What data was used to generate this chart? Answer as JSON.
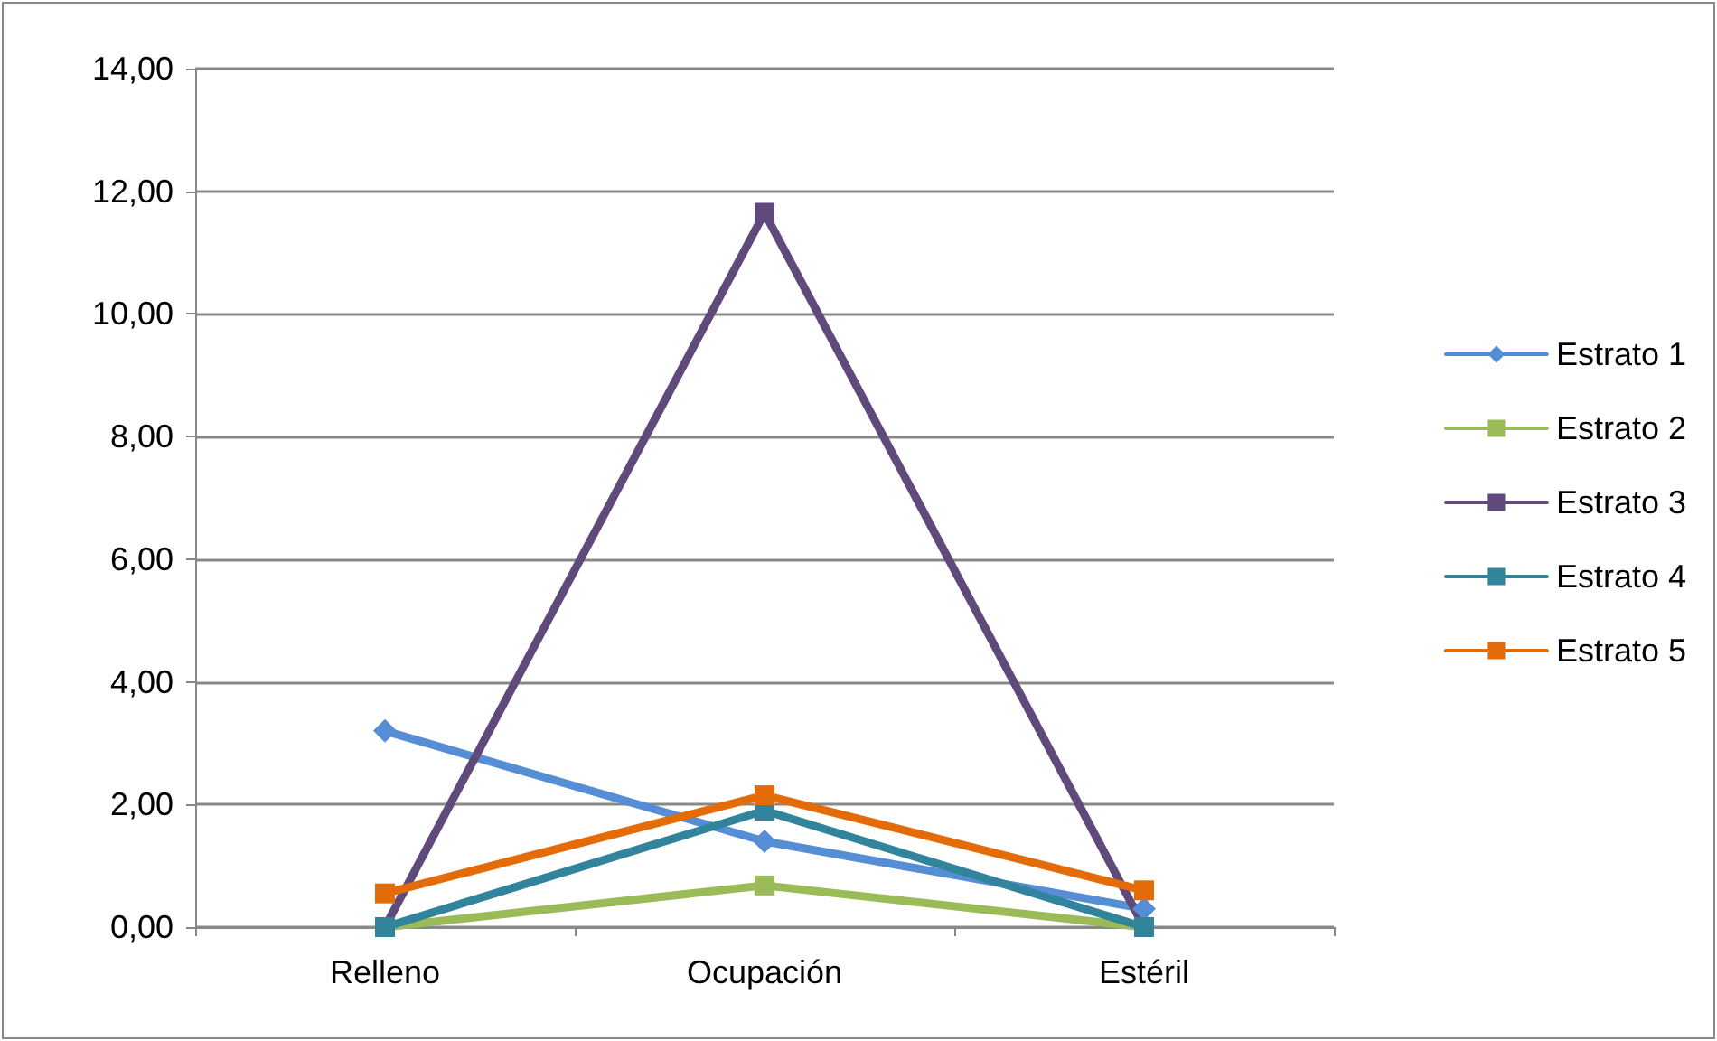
{
  "chart_data": {
    "type": "line",
    "categories": [
      "Relleno",
      "Ocupación",
      "Estéril"
    ],
    "series": [
      {
        "name": "Estrato 1",
        "color": "#558ed5",
        "marker": "diamond",
        "values": [
          3.2,
          1.4,
          0.3
        ]
      },
      {
        "name": "Estrato 2",
        "color": "#9bbb59",
        "marker": "square",
        "values": [
          0,
          0.68,
          0
        ]
      },
      {
        "name": "Estrato 3",
        "color": "#604a7b",
        "marker": "square",
        "values": [
          0,
          11.65,
          0
        ]
      },
      {
        "name": "Estrato 4",
        "color": "#31849b",
        "marker": "square",
        "values": [
          0,
          1.9,
          0
        ]
      },
      {
        "name": "Estrato 5",
        "color": "#e36c09",
        "marker": "square",
        "values": [
          0.55,
          2.15,
          0.6
        ]
      }
    ],
    "ylim": [
      0,
      14
    ],
    "yticks": [
      {
        "value": 0,
        "label": "0,00"
      },
      {
        "value": 2,
        "label": "2,00"
      },
      {
        "value": 4,
        "label": "4,00"
      },
      {
        "value": 6,
        "label": "6,00"
      },
      {
        "value": 8,
        "label": "8,00"
      },
      {
        "value": 10,
        "label": "10,00"
      },
      {
        "value": 12,
        "label": "12,00"
      },
      {
        "value": 14,
        "label": "14,00"
      }
    ],
    "grid": "y",
    "legend": "right",
    "line_style": "solid"
  }
}
